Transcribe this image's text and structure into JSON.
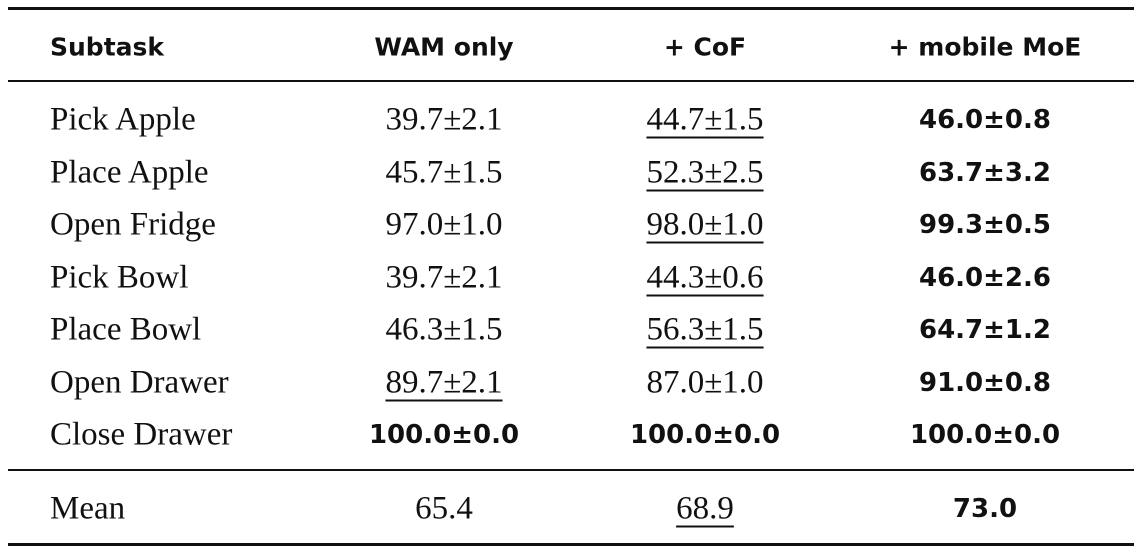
{
  "table": {
    "header": [
      "Subtask",
      "WAM only",
      "+ CoF",
      "+ mobile MoE"
    ],
    "rows": [
      [
        "Pick Apple",
        "39.7±2.1",
        "44.7±1.5",
        "46.0±0.8"
      ],
      [
        "Place Apple",
        "45.7±1.5",
        "52.3±2.5",
        "63.7±3.2"
      ],
      [
        "Open Fridge",
        "97.0±1.0",
        "98.0±1.0",
        "99.3±0.5"
      ],
      [
        "Pick Bowl",
        "39.7±2.1",
        "44.3±0.6",
        "46.0±2.6"
      ],
      [
        "Place Bowl",
        "46.3±1.5",
        "56.3±1.5",
        "64.7±1.2"
      ],
      [
        "Open Drawer",
        "89.7±2.1",
        "87.0±1.0",
        "91.0±0.8"
      ],
      [
        "Close Drawer",
        "100.0±0.0",
        "100.0±0.0",
        "100.0±0.0"
      ]
    ],
    "footer": [
      "Mean",
      "65.4",
      "68.9",
      "73.0"
    ]
  }
}
